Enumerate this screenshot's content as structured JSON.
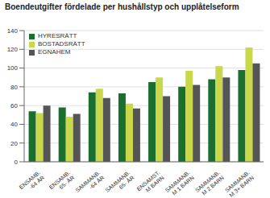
{
  "chart_data": {
    "type": "bar",
    "title": "Boendeutgifter fördelade per hushållstyp och upplåtelseform",
    "categories": [
      "ENSAMB.\n-64 ÅR",
      "ENSAMB.\n65- ÅR",
      "SAMMANB.\n-64 ÅR",
      "SAMMANB.\n65- ÅR",
      "ENSAMST.\nM BARN",
      "SAMMANB.\nM 1 BARN",
      "SAMMANB.\nM 2 BARN",
      "SAMMANB.\nM 3+ BARN"
    ],
    "series": [
      {
        "name": "HYRESRÄTT",
        "color": "#1a6e2e",
        "values": [
          54,
          58,
          74,
          73,
          85,
          80,
          88,
          98
        ]
      },
      {
        "name": "BOSTADSRÄTT",
        "color": "#c8d84a",
        "values": [
          52,
          48,
          78,
          62,
          90,
          97,
          102,
          122
        ]
      },
      {
        "name": "EGNAHEM",
        "color": "#555555",
        "values": [
          60,
          51,
          68,
          57,
          70,
          82,
          90,
          105
        ]
      }
    ],
    "ylim": [
      0,
      140
    ],
    "yticks": [
      0,
      20,
      40,
      60,
      80,
      100,
      120,
      140
    ],
    "grid": true,
    "legend": "upper left"
  }
}
